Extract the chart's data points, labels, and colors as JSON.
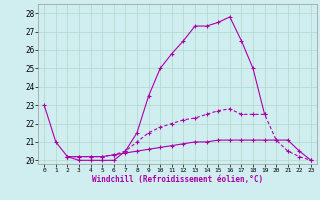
{
  "xlabel": "Windchill (Refroidissement éolien,°C)",
  "background_color": "#d0eef0",
  "grid_color": "#b0d8cc",
  "line_color": "#aa00aa",
  "x_hours": [
    0,
    1,
    2,
    3,
    4,
    5,
    6,
    7,
    8,
    9,
    10,
    11,
    12,
    13,
    14,
    15,
    16,
    17,
    18,
    19,
    20,
    21,
    22,
    23
  ],
  "line1": [
    23,
    21,
    20.2,
    20,
    20,
    20,
    20,
    20.5,
    21.5,
    23.5,
    25,
    25.8,
    26.5,
    27.3,
    27.3,
    27.5,
    27.8,
    26.5,
    25,
    22.5,
    null,
    null,
    null,
    null
  ],
  "line2": [
    null,
    null,
    20.2,
    20.2,
    20.2,
    20.2,
    20.3,
    20.5,
    21.0,
    21.5,
    21.8,
    22.0,
    22.2,
    22.3,
    22.5,
    22.7,
    22.8,
    22.5,
    22.5,
    22.5,
    21.1,
    20.5,
    20.2,
    20.0
  ],
  "line3": [
    null,
    null,
    20.2,
    20.2,
    20.2,
    20.2,
    20.3,
    20.4,
    20.5,
    20.6,
    20.7,
    20.8,
    20.9,
    21.0,
    21.0,
    21.1,
    21.1,
    21.1,
    21.1,
    21.1,
    21.1,
    21.1,
    20.5,
    20.0
  ],
  "ylim": [
    19.8,
    28.5
  ],
  "yticks": [
    20,
    21,
    22,
    23,
    24,
    25,
    26,
    27,
    28
  ],
  "xlim": [
    -0.5,
    23.5
  ]
}
